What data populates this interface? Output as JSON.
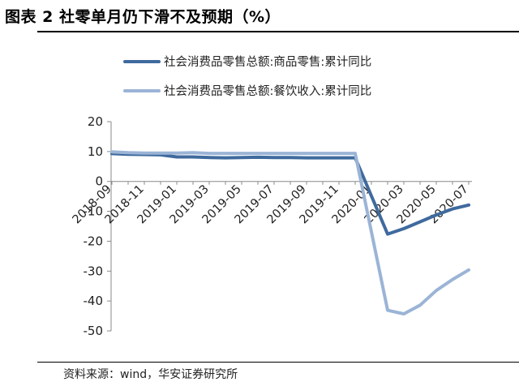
{
  "figure_title": "图表 2 社零单月仍下滑不及预期（%）",
  "source_text": "资料来源：wind，华安证券研究所",
  "chart_data": {
    "type": "line",
    "title": "",
    "xlabel": "",
    "ylabel": "",
    "ylim": [
      -50,
      20
    ],
    "yticks": [
      20,
      10,
      0,
      -10,
      -20,
      -30,
      -40,
      -50
    ],
    "grid": false,
    "legend_position": "top",
    "x": [
      "2018-09",
      "2018-10",
      "2018-11",
      "2018-12",
      "2019-01",
      "2019-02",
      "2019-03",
      "2019-04",
      "2019-05",
      "2019-06",
      "2019-07",
      "2019-08",
      "2019-09",
      "2019-10",
      "2019-11",
      "2019-12",
      "2020-01",
      "2020-02",
      "2020-03",
      "2020-04",
      "2020-05",
      "2020-06",
      "2020-07"
    ],
    "x_tick_labels": [
      "2018-09",
      "2018-11",
      "2019-01",
      "2019-03",
      "2019-05",
      "2019-07",
      "2019-09",
      "2019-11",
      "2020-01",
      "2020-03",
      "2020-05",
      "2020-07"
    ],
    "series": [
      {
        "name": "社会消费品零售总额:商品零售:累计同比",
        "color": "#3f6a9e",
        "values": [
          9.3,
          9.1,
          9.0,
          8.9,
          8.2,
          8.2,
          8.0,
          7.9,
          8.0,
          8.1,
          8.0,
          8.0,
          7.9,
          7.9,
          7.9,
          7.9,
          null,
          -17.6,
          -15.8,
          -13.5,
          -11.2,
          -9.2,
          -7.9
        ]
      },
      {
        "name": "社会消费品零售总额:餐饮收入:累计同比",
        "color": "#9bb4d6",
        "values": [
          9.9,
          9.6,
          9.5,
          9.5,
          9.5,
          9.6,
          9.4,
          9.4,
          9.4,
          9.4,
          9.4,
          9.4,
          9.4,
          9.4,
          9.4,
          9.4,
          null,
          -43.1,
          -44.3,
          -41.4,
          -36.5,
          -32.8,
          -29.6
        ]
      }
    ]
  }
}
